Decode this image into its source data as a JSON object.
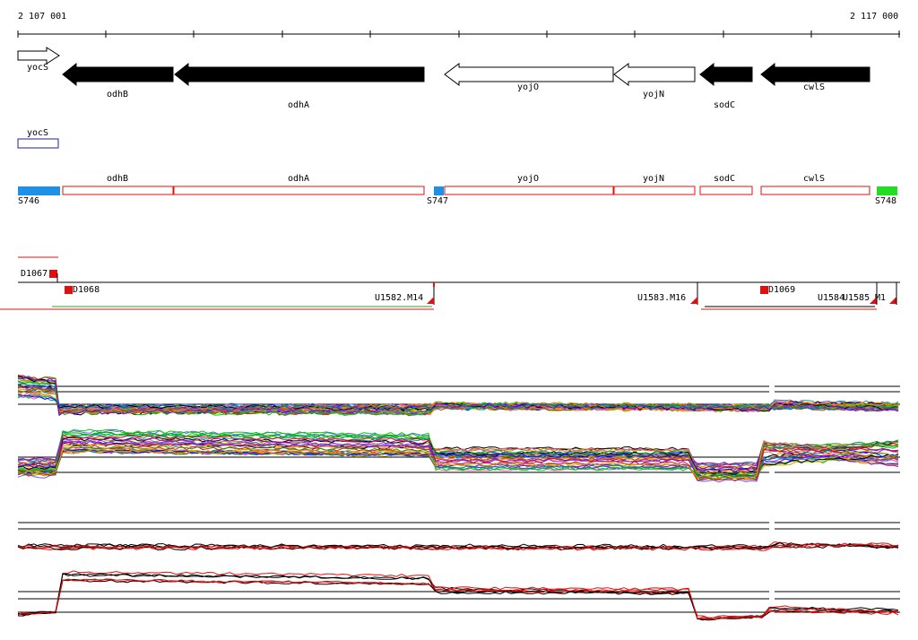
{
  "axis": {
    "start_label": "2 107 001",
    "end_label": "2 117 000"
  },
  "genes": [
    {
      "name": "yocS",
      "strand": "+",
      "filled": false
    },
    {
      "name": "odhB",
      "strand": "-",
      "filled": true
    },
    {
      "name": "odhA",
      "strand": "-",
      "filled": true
    },
    {
      "name": "yojO",
      "strand": "-",
      "filled": false
    },
    {
      "name": "yojN",
      "strand": "-",
      "filled": false
    },
    {
      "name": "sodC",
      "strand": "-",
      "filled": true
    },
    {
      "name": "cwlS",
      "strand": "-",
      "filled": true
    }
  ],
  "other_strand_feature": {
    "name": "yocS",
    "color": "#2020a0"
  },
  "segments_track": {
    "genes": [
      "odhB",
      "odhA",
      "yojO",
      "yojN",
      "sodC",
      "cwlS"
    ],
    "sites": [
      {
        "name": "S746",
        "color": "#1e90e8"
      },
      {
        "name": "S747",
        "color": "#1e90e8"
      },
      {
        "name": "S748",
        "color": "#22dd22"
      }
    ],
    "box_color": "#e01010"
  },
  "transcripts": {
    "labels": [
      "D1067",
      "D1068",
      "U1582.M14",
      "U1583.M16",
      "D1069",
      "U1584",
      "U1585",
      "M1"
    ],
    "color": "#e01010"
  },
  "colors": {
    "accent": "#e01010",
    "green": "#22aa22",
    "black": "#000000"
  }
}
